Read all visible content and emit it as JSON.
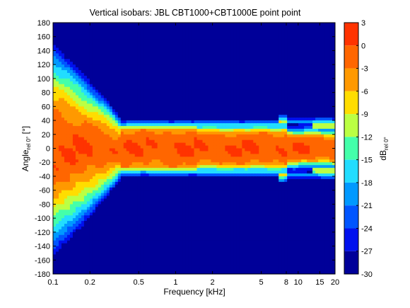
{
  "chart_data": {
    "type": "heatmap",
    "title": "Vertical isobars: JBL  CBT1000+CBT1000E  point point",
    "xlabel": "Frequency [kHz]",
    "ylabel": "Angle",
    "ylabel_sub": "rel 0°",
    "ylabel_unit": " [°]",
    "colorbar_label": "dB",
    "colorbar_label_sub": "rel 0°",
    "x_scale": "log",
    "xlim": [
      0.1,
      20
    ],
    "ylim": [
      -180,
      180
    ],
    "x_ticks": [
      0.1,
      0.2,
      0.5,
      1,
      2,
      5,
      8,
      10,
      15,
      20
    ],
    "x_tick_labels": [
      "0.1",
      "0.2",
      "0.5",
      "1",
      "2",
      "5",
      "8",
      "10",
      "15",
      "20"
    ],
    "y_ticks": [
      180,
      160,
      140,
      120,
      100,
      80,
      60,
      40,
      20,
      0,
      -20,
      -40,
      -60,
      -80,
      -100,
      -120,
      -140,
      -160,
      -180
    ],
    "y_tick_labels": [
      "180",
      "160",
      "140",
      "120",
      "100",
      "80",
      "60",
      "40",
      "20",
      "0",
      "-20",
      "-40",
      "-60",
      "-80",
      "-100",
      "-120",
      "-140",
      "-160",
      "-180"
    ],
    "colorbar_ticks": [
      3,
      0,
      -3,
      -6,
      -9,
      -12,
      -15,
      -18,
      -21,
      -24,
      -27,
      -30
    ],
    "colorbar_tick_labels": [
      "3",
      "0",
      "-3",
      "-6",
      "-9",
      "-12",
      "-15",
      "-18",
      "-21",
      "-24",
      "-27",
      "-30"
    ],
    "colorbar_levels": [
      {
        "from": 0,
        "to": 3,
        "color": "#ff3300"
      },
      {
        "from": -3,
        "to": 0,
        "color": "#ff6600"
      },
      {
        "from": -6,
        "to": -3,
        "color": "#ff9900"
      },
      {
        "from": -9,
        "to": -6,
        "color": "#ffdd00"
      },
      {
        "from": -12,
        "to": -9,
        "color": "#bbff44"
      },
      {
        "from": -15,
        "to": -12,
        "color": "#44ffaa"
      },
      {
        "from": -18,
        "to": -15,
        "color": "#22ddff"
      },
      {
        "from": -21,
        "to": -18,
        "color": "#0099ff"
      },
      {
        "from": -24,
        "to": -21,
        "color": "#0055ff"
      },
      {
        "from": -27,
        "to": -24,
        "color": "#0011ee"
      },
      {
        "from": -30,
        "to": -27,
        "color": "#000099"
      }
    ]
  }
}
